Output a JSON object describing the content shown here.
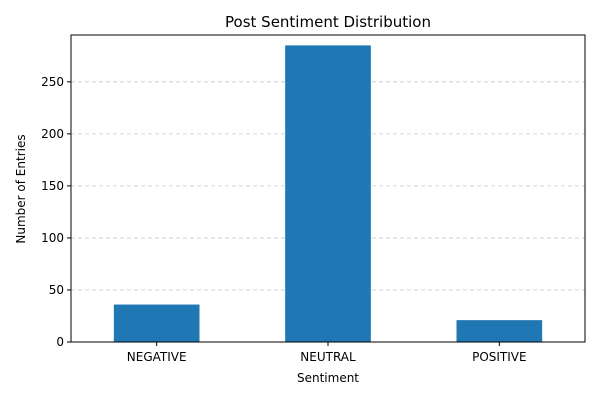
{
  "chart_data": {
    "type": "bar",
    "title": "Post Sentiment Distribution",
    "xlabel": "Sentiment",
    "ylabel": "Number of Entries",
    "categories": [
      "NEGATIVE",
      "NEUTRAL",
      "POSITIVE"
    ],
    "values": [
      36,
      285,
      21
    ],
    "ylim": [
      0,
      295
    ],
    "yticks": [
      0,
      50,
      100,
      150,
      200,
      250
    ],
    "grid": "y-dashed",
    "bar_color": "#1f77b4",
    "gridline_color": "#c8c8c8"
  }
}
